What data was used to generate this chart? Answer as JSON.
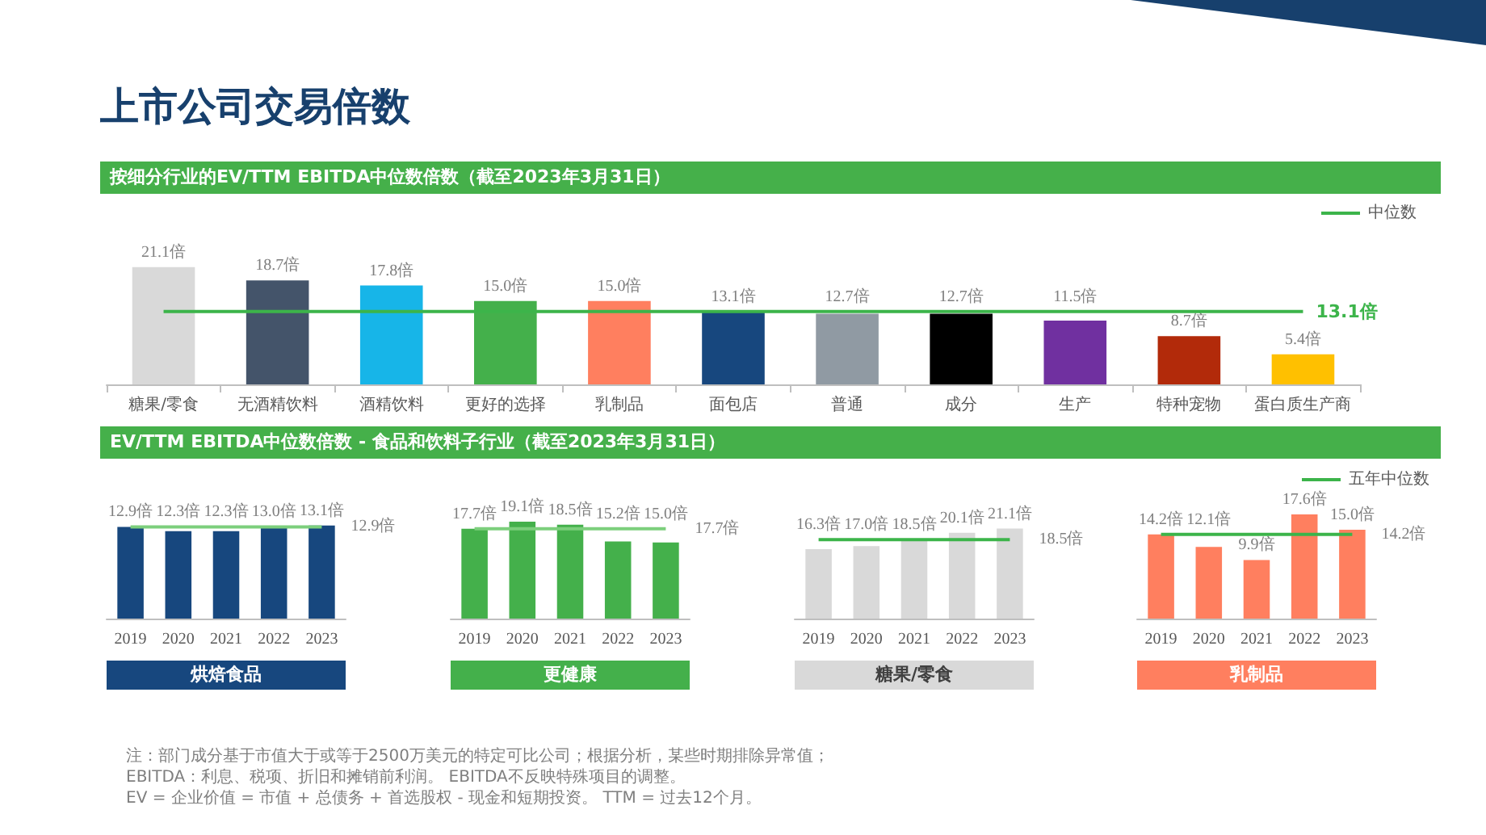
{
  "chart_data": [
    {
      "type": "bar",
      "title": "上市公司交易倍数",
      "subtitle": "按细分行业的EV/TTM EBITDA中位数倍数（截至2023年3月31日）",
      "categories": [
        "糖果/零食",
        "无酒精饮料",
        "酒精饮料",
        "更好的选择",
        "乳制品",
        "面包店",
        "普通",
        "成分",
        "生产",
        "特种宠物",
        "蛋白质生产商"
      ],
      "legend": "top right",
      "tick_labels": "x",
      "grid": false,
      "series": [
        {
          "colors": [
            "#d9d9d9",
            "#44546a",
            "#17b5e8",
            "#44b04b",
            "#ff7f5f",
            "#17477e",
            "#909aa3",
            "#000000",
            "#7030a0",
            "#b22a0a",
            "#ffc000"
          ],
          "values": [
            21.1,
            18.7,
            17.8,
            15.0,
            15.0,
            13.1,
            12.7,
            12.7,
            11.5,
            8.7,
            5.4
          ],
          "value_labels": [
            "21.1倍",
            "18.7倍",
            "17.8倍",
            "15.0倍",
            "15.0倍",
            "13.1倍",
            "12.7倍",
            "12.7倍",
            "11.5倍",
            "8.7倍",
            "5.4倍"
          ]
        },
        {
          "type": "line",
          "name": "中位数",
          "color": "#3cb44a",
          "marker": "none",
          "values": [
            13.1,
            13.1,
            13.1,
            13.1,
            13.1,
            13.1,
            13.1,
            13.1,
            13.1,
            13.1,
            13.1
          ],
          "value_labels": [
            null,
            null,
            null,
            null,
            null,
            null,
            null,
            null,
            null,
            null,
            "13.1倍"
          ]
        }
      ]
    },
    {
      "type": "bar",
      "subtitle": "EV/TTM EBITDA中位数倍数 - 食品和饮料子行业（截至2023年3月31日）",
      "xlabel": "烘焙食品",
      "categories": [
        "2019",
        "2020",
        "2021",
        "2022",
        "2023"
      ],
      "tick_labels": "x",
      "grid": false,
      "series": [
        {
          "color": "#17477e",
          "values": [
            12.9,
            12.3,
            12.3,
            13.0,
            13.1
          ],
          "value_labels": [
            "12.9倍",
            "12.3倍",
            "12.3倍",
            "13.0倍",
            "13.1倍"
          ]
        },
        {
          "type": "line",
          "color": "#7ccf7c",
          "marker": "none",
          "values": [
            12.9,
            12.9,
            12.9,
            12.9,
            12.9
          ],
          "value_labels": [
            null,
            null,
            null,
            null,
            "12.9倍"
          ]
        }
      ]
    },
    {
      "type": "bar",
      "xlabel": "更健康",
      "categories": [
        "2019",
        "2020",
        "2021",
        "2022",
        "2023"
      ],
      "tick_labels": "x",
      "grid": false,
      "series": [
        {
          "color": "#44b04b",
          "values": [
            17.7,
            19.1,
            18.5,
            15.2,
            15.0
          ],
          "value_labels": [
            "17.7倍",
            "19.1倍",
            "18.5倍",
            "15.2倍",
            "15.0倍"
          ]
        },
        {
          "type": "line",
          "color": "#7ccf7c",
          "marker": "none",
          "values": [
            17.7,
            17.7,
            17.7,
            17.7,
            17.7
          ],
          "value_labels": [
            null,
            null,
            null,
            null,
            "17.7倍"
          ]
        }
      ]
    },
    {
      "type": "bar",
      "xlabel": "糖果/零食",
      "categories": [
        "2019",
        "2020",
        "2021",
        "2022",
        "2023"
      ],
      "tick_labels": "x",
      "grid": false,
      "series": [
        {
          "color": "#d9d9d9",
          "values": [
            16.3,
            17.0,
            18.5,
            20.1,
            21.1
          ],
          "value_labels": [
            "16.3倍",
            "17.0倍",
            "18.5倍",
            "20.1倍",
            "21.1倍"
          ]
        },
        {
          "type": "line",
          "color": "#3cb44a",
          "marker": "none",
          "values": [
            18.5,
            18.5,
            18.5,
            18.5,
            18.5
          ],
          "value_labels": [
            null,
            null,
            null,
            null,
            "18.5倍"
          ]
        }
      ]
    },
    {
      "type": "bar",
      "xlabel": "乳制品",
      "categories": [
        "2019",
        "2020",
        "2021",
        "2022",
        "2023"
      ],
      "tick_labels": "x",
      "grid": false,
      "legend": "top right",
      "annotations": [
        "注：部门成分基于市值大于或等于2500万美元的特定可比公司；根据分析，某些时期排除异常值；",
        "EBITDA：利息、税项、折旧和摊销前利润。 EBITDA不反映特殊项目的调整。",
        "EV = 企业价值 = 市值 + 总债务 + 首选股权 - 现金和短期投资。 TTM = 过去12个月。"
      ],
      "series": [
        {
          "color": "#ff7f5f",
          "values": [
            14.2,
            12.1,
            9.9,
            17.6,
            15.0
          ],
          "value_labels": [
            "14.2倍",
            "12.1倍",
            "9.9倍",
            "17.6倍",
            "15.0倍"
          ]
        },
        {
          "type": "line",
          "name": "五年中位数",
          "color": "#3cb44a",
          "marker": "none",
          "values": [
            14.2,
            14.2,
            14.2,
            14.2,
            14.2
          ],
          "value_labels": [
            null,
            null,
            null,
            null,
            "14.2倍"
          ]
        }
      ]
    }
  ]
}
